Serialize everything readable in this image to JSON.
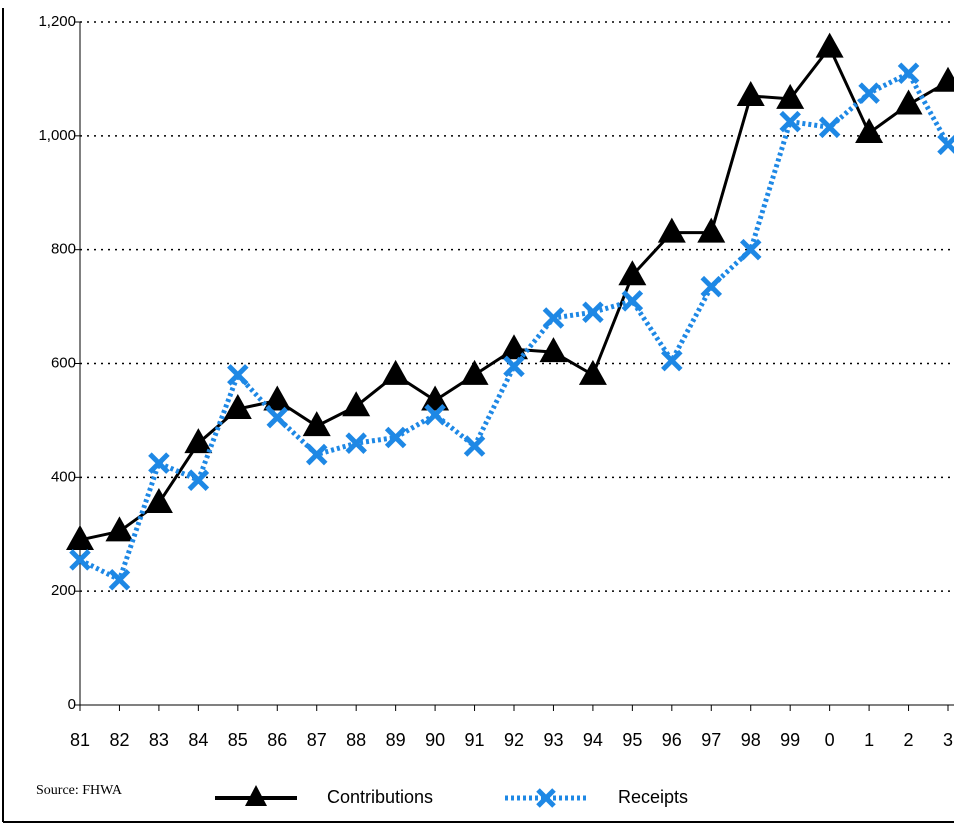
{
  "chart_data": {
    "type": "line",
    "source": "Source: FHWA",
    "categories": [
      "81",
      "82",
      "83",
      "84",
      "85",
      "86",
      "87",
      "88",
      "89",
      "90",
      "91",
      "92",
      "93",
      "94",
      "95",
      "96",
      "97",
      "98",
      "99",
      "0",
      "1",
      "2",
      "3"
    ],
    "series": [
      {
        "name": "Contributions",
        "color": "#000000",
        "marker": "triangle",
        "dash": "solid",
        "values": [
          290,
          305,
          355,
          460,
          520,
          535,
          490,
          525,
          580,
          535,
          580,
          625,
          620,
          580,
          755,
          830,
          830,
          1070,
          1065,
          1155,
          1005,
          1055,
          1095
        ]
      },
      {
        "name": "Receipts",
        "color": "#1e88e5",
        "marker": "x",
        "dash": "dotted",
        "values": [
          255,
          220,
          425,
          395,
          580,
          505,
          440,
          460,
          470,
          510,
          455,
          595,
          680,
          690,
          710,
          605,
          735,
          800,
          1025,
          1015,
          1075,
          1110,
          985
        ]
      }
    ],
    "ylim": [
      0,
      1200
    ],
    "yticks": [
      0,
      200,
      400,
      600,
      800,
      {
        "value": 1000,
        "label": "1,000"
      },
      {
        "value": 1200,
        "label": "1,200"
      }
    ],
    "grid": true
  }
}
